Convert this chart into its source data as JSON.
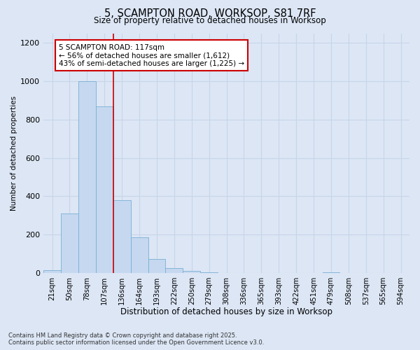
{
  "title_line1": "5, SCAMPTON ROAD, WORKSOP, S81 7RF",
  "title_line2": "Size of property relative to detached houses in Worksop",
  "xlabel": "Distribution of detached houses by size in Worksop",
  "ylabel": "Number of detached properties",
  "footnote_line1": "Contains HM Land Registry data © Crown copyright and database right 2025.",
  "footnote_line2": "Contains public sector information licensed under the Open Government Licence v3.0.",
  "bin_labels": [
    "21sqm",
    "50sqm",
    "78sqm",
    "107sqm",
    "136sqm",
    "164sqm",
    "193sqm",
    "222sqm",
    "250sqm",
    "279sqm",
    "308sqm",
    "336sqm",
    "365sqm",
    "393sqm",
    "422sqm",
    "451sqm",
    "479sqm",
    "508sqm",
    "537sqm",
    "565sqm",
    "594sqm"
  ],
  "bar_values": [
    15,
    310,
    1000,
    870,
    380,
    185,
    75,
    25,
    10,
    5,
    0,
    0,
    0,
    0,
    0,
    0,
    5,
    0,
    0,
    0,
    0
  ],
  "bar_color": "#c5d8f0",
  "bar_edge_color": "#7aafd4",
  "ylim": [
    0,
    1250
  ],
  "yticks": [
    0,
    200,
    400,
    600,
    800,
    1000,
    1200
  ],
  "vline_x": 3.5,
  "vline_color": "#cc0000",
  "annotation_text": "5 SCAMPTON ROAD: 117sqm\n← 56% of detached houses are smaller (1,612)\n43% of semi-detached houses are larger (1,225) →",
  "annotation_box_color": "#ffffff",
  "annotation_box_edge": "#cc0000",
  "grid_color": "#c8d4e8",
  "background_color": "#dce6f5",
  "fig_background_color": "#dce6f5"
}
